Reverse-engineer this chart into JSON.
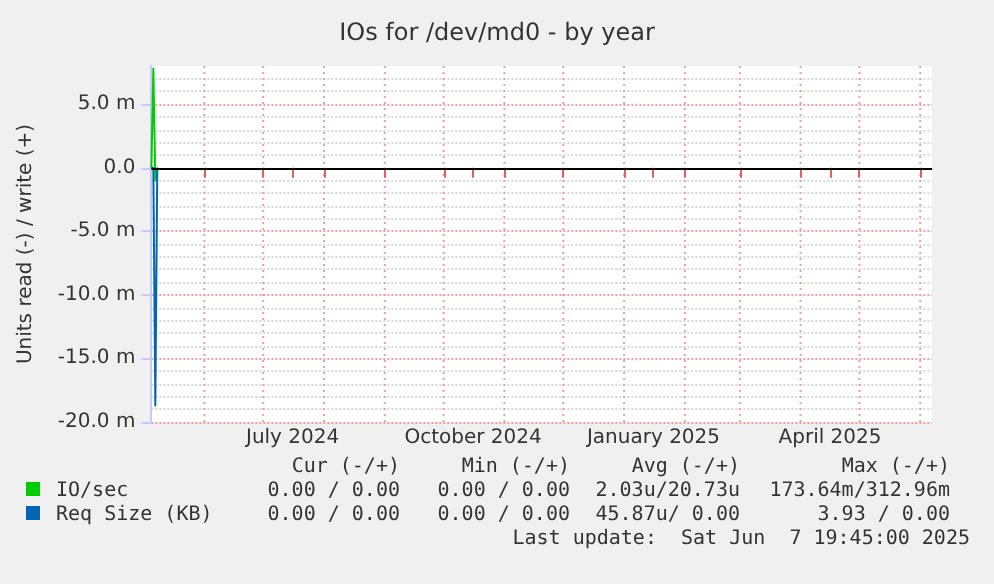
{
  "chart_data": {
    "type": "line",
    "title": "IOs for /dev/md0 - by year",
    "ylabel": "Units read (-) / write (+)",
    "xlim": [
      "2024-05-05",
      "2025-06-07"
    ],
    "xticks": [
      {
        "value": "2024-06-01",
        "label": null
      },
      {
        "value": "2024-07-01",
        "label": null
      },
      {
        "value": "2024-07-16",
        "label": "July 2024"
      },
      {
        "value": "2024-08-01",
        "label": null
      },
      {
        "value": "2024-09-01",
        "label": null
      },
      {
        "value": "2024-10-01",
        "label": null
      },
      {
        "value": "2024-10-16",
        "label": "October 2024"
      },
      {
        "value": "2024-11-01",
        "label": null
      },
      {
        "value": "2024-12-01",
        "label": null
      },
      {
        "value": "2025-01-01",
        "label": null
      },
      {
        "value": "2025-01-16",
        "label": "January 2025"
      },
      {
        "value": "2025-02-01",
        "label": null
      },
      {
        "value": "2025-03-01",
        "label": null
      },
      {
        "value": "2025-04-01",
        "label": null
      },
      {
        "value": "2025-04-16",
        "label": "April 2025"
      },
      {
        "value": "2025-05-01",
        "label": null
      },
      {
        "value": "2025-06-01",
        "label": null
      }
    ],
    "ylim": [
      -20,
      8
    ],
    "yticks": [
      {
        "value": -20,
        "label": "-20.0 m"
      },
      {
        "value": -15,
        "label": "-15.0 m"
      },
      {
        "value": -10,
        "label": "-10.0 m"
      },
      {
        "value": -5,
        "label": "-5.0 m"
      },
      {
        "value": 0,
        "label": "0.0"
      },
      {
        "value": 5,
        "label": "5.0 m"
      }
    ],
    "grid": true,
    "legend": "bottom",
    "marker": "none",
    "line_style": "solid",
    "ref_lines": [
      {
        "axis": "y",
        "value": 0,
        "label": null,
        "color": "#000000"
      }
    ],
    "series": [
      {
        "name": "IO/sec",
        "color": "#00cc00",
        "x": [
          "2024-05-05",
          "2024-05-06",
          "2024-05-07",
          "2024-05-08"
        ],
        "values": [
          0,
          7.8,
          -1,
          0
        ]
      },
      {
        "name": "Req Size (KB)",
        "color": "#0066b3",
        "x": [
          "2024-05-05",
          "2024-05-06",
          "2024-05-07",
          "2024-05-08"
        ],
        "values": [
          0,
          0,
          -18.7,
          0
        ]
      }
    ],
    "annotations": [
      "Cur (-/+)",
      "Min (-/+)",
      "Avg (-/+)",
      "Max (-/+)",
      "0.00 / 0.00",
      "0.00 / 0.00",
      "2.03u/20.73u",
      "173.64m/312.96m",
      "0.00 / 0.00",
      "0.00 / 0.00",
      "45.87u/ 0.00",
      "3.93 / 0.00",
      "Last update:  Sat Jun  7 19:45:00 2025"
    ]
  }
}
